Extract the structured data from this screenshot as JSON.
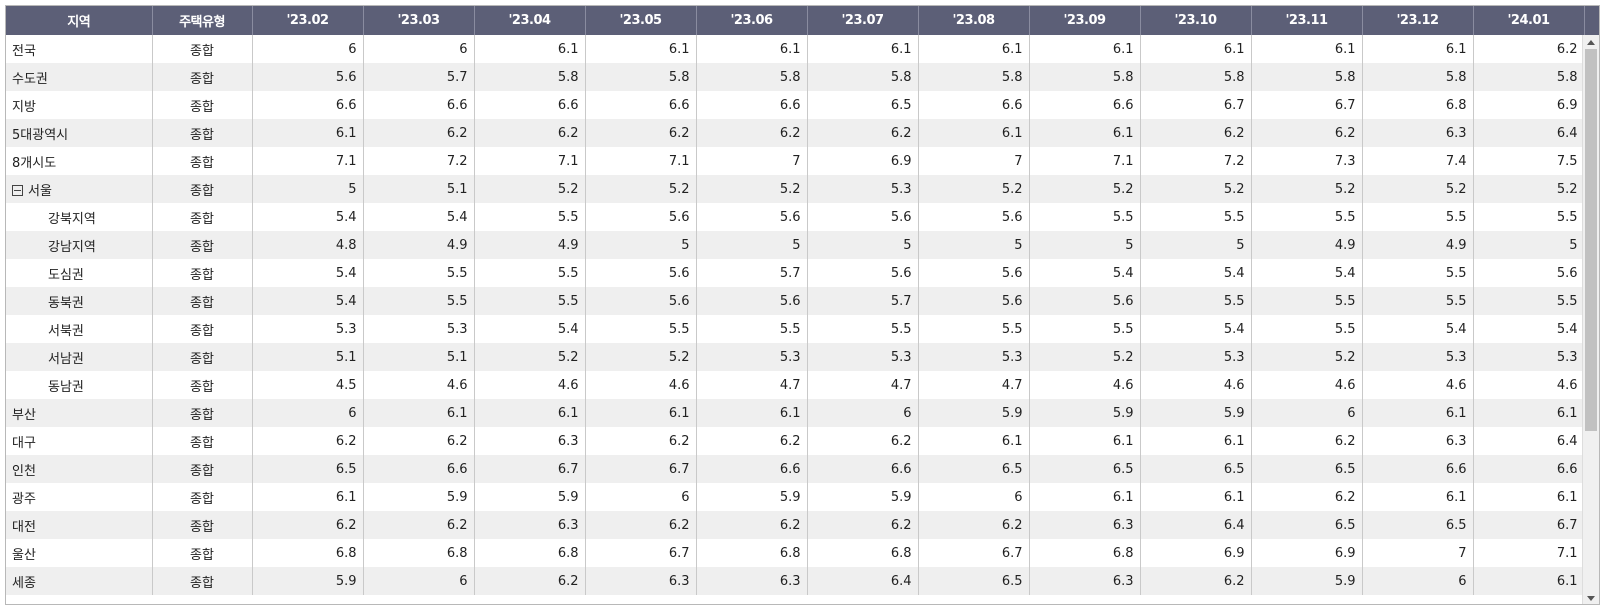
{
  "table": {
    "columns": [
      "지역",
      "주택유형",
      "'23.02",
      "'23.03",
      "'23.04",
      "'23.05",
      "'23.06",
      "'23.07",
      "'23.08",
      "'23.09",
      "'23.10",
      "'23.11",
      "'23.12",
      "'24.01"
    ],
    "rows": [
      {
        "region": "전국",
        "type": "종합",
        "values": [
          6,
          6,
          6.1,
          6.1,
          6.1,
          6.1,
          6.1,
          6.1,
          6.1,
          6.1,
          6.1,
          6.2
        ]
      },
      {
        "region": "수도권",
        "type": "종합",
        "values": [
          5.6,
          5.7,
          5.8,
          5.8,
          5.8,
          5.8,
          5.8,
          5.8,
          5.8,
          5.8,
          5.8,
          5.8
        ]
      },
      {
        "region": "지방",
        "type": "종합",
        "values": [
          6.6,
          6.6,
          6.6,
          6.6,
          6.6,
          6.5,
          6.6,
          6.6,
          6.7,
          6.7,
          6.8,
          6.9
        ]
      },
      {
        "region": "5대광역시",
        "type": "종합",
        "values": [
          6.1,
          6.2,
          6.2,
          6.2,
          6.2,
          6.2,
          6.1,
          6.1,
          6.2,
          6.2,
          6.3,
          6.4
        ]
      },
      {
        "region": "8개시도",
        "type": "종합",
        "values": [
          7.1,
          7.2,
          7.1,
          7.1,
          7,
          6.9,
          7,
          7.1,
          7.2,
          7.3,
          7.4,
          7.5
        ]
      },
      {
        "region": "서울",
        "type": "종합",
        "values": [
          5,
          5.1,
          5.2,
          5.2,
          5.2,
          5.3,
          5.2,
          5.2,
          5.2,
          5.2,
          5.2,
          5.2
        ],
        "children": [
          {
            "region": "강북지역",
            "type": "종합",
            "values": [
              5.4,
              5.4,
              5.5,
              5.6,
              5.6,
              5.6,
              5.6,
              5.5,
              5.5,
              5.5,
              5.5,
              5.5
            ]
          },
          {
            "region": "강남지역",
            "type": "종합",
            "values": [
              4.8,
              4.9,
              4.9,
              5,
              5,
              5,
              5,
              5,
              5,
              4.9,
              4.9,
              5
            ]
          },
          {
            "region": "도심권",
            "type": "종합",
            "values": [
              5.4,
              5.5,
              5.5,
              5.6,
              5.7,
              5.6,
              5.6,
              5.4,
              5.4,
              5.4,
              5.5,
              5.6
            ]
          },
          {
            "region": "동북권",
            "type": "종합",
            "values": [
              5.4,
              5.5,
              5.5,
              5.6,
              5.6,
              5.7,
              5.6,
              5.6,
              5.5,
              5.5,
              5.5,
              5.5
            ]
          },
          {
            "region": "서북권",
            "type": "종합",
            "values": [
              5.3,
              5.3,
              5.4,
              5.5,
              5.5,
              5.5,
              5.5,
              5.5,
              5.4,
              5.5,
              5.4,
              5.4
            ]
          },
          {
            "region": "서남권",
            "type": "종합",
            "values": [
              5.1,
              5.1,
              5.2,
              5.2,
              5.3,
              5.3,
              5.3,
              5.2,
              5.3,
              5.2,
              5.3,
              5.3
            ]
          },
          {
            "region": "동남권",
            "type": "종합",
            "values": [
              4.5,
              4.6,
              4.6,
              4.6,
              4.7,
              4.7,
              4.7,
              4.6,
              4.6,
              4.6,
              4.6,
              4.6
            ]
          }
        ]
      },
      {
        "region": "부산",
        "type": "종합",
        "values": [
          6,
          6.1,
          6.1,
          6.1,
          6.1,
          6,
          5.9,
          5.9,
          5.9,
          6,
          6.1,
          6.1
        ]
      },
      {
        "region": "대구",
        "type": "종합",
        "values": [
          6.2,
          6.2,
          6.3,
          6.2,
          6.2,
          6.2,
          6.1,
          6.1,
          6.1,
          6.2,
          6.3,
          6.4
        ]
      },
      {
        "region": "인천",
        "type": "종합",
        "values": [
          6.5,
          6.6,
          6.7,
          6.7,
          6.6,
          6.6,
          6.5,
          6.5,
          6.5,
          6.5,
          6.6,
          6.6
        ]
      },
      {
        "region": "광주",
        "type": "종합",
        "values": [
          6.1,
          5.9,
          5.9,
          6,
          5.9,
          5.9,
          6,
          6.1,
          6.1,
          6.2,
          6.1,
          6.1
        ]
      },
      {
        "region": "대전",
        "type": "종합",
        "values": [
          6.2,
          6.2,
          6.3,
          6.2,
          6.2,
          6.2,
          6.2,
          6.3,
          6.4,
          6.5,
          6.5,
          6.7
        ]
      },
      {
        "region": "울산",
        "type": "종합",
        "values": [
          6.8,
          6.8,
          6.8,
          6.7,
          6.8,
          6.8,
          6.7,
          6.8,
          6.9,
          6.9,
          7,
          7.1
        ]
      },
      {
        "region": "세종",
        "type": "종합",
        "values": [
          5.9,
          6,
          6.2,
          6.3,
          6.3,
          6.4,
          6.5,
          6.3,
          6.2,
          5.9,
          6,
          6.1
        ]
      }
    ]
  }
}
